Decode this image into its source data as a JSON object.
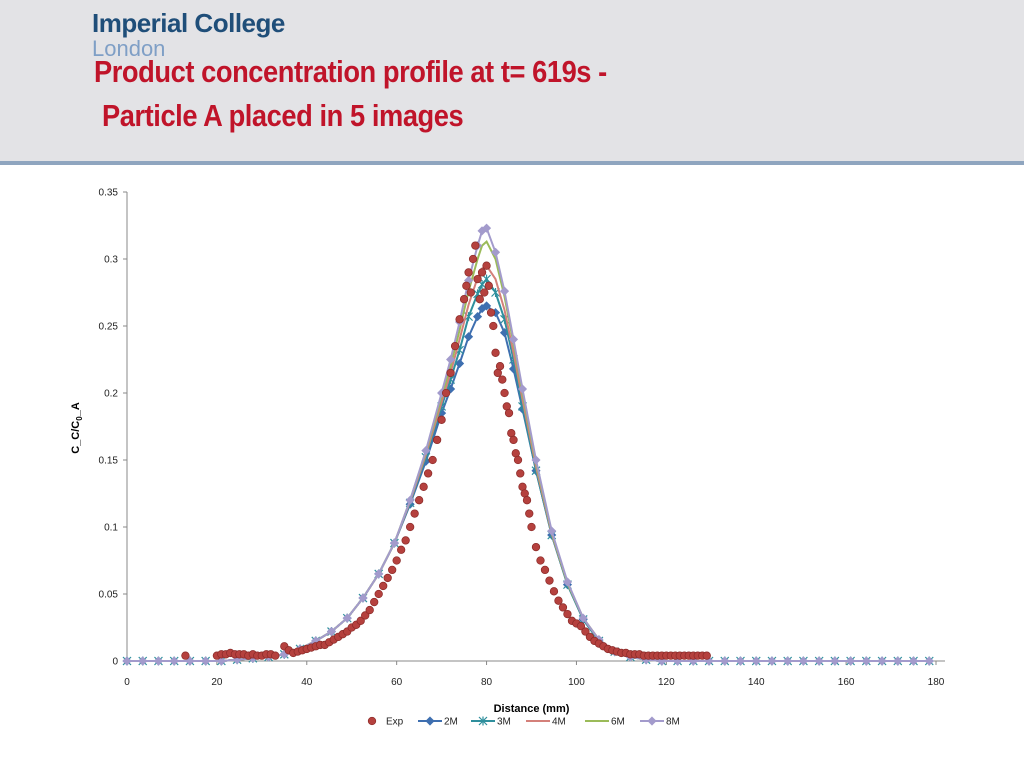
{
  "header": {
    "logo_line1": "Imperial College",
    "logo_line2": "London",
    "title_line1": "Product concentration profile at t= 619s -",
    "title_line2": "Particle A placed in 5 images"
  },
  "colors": {
    "header_bg": "#e3e3e6",
    "header_border": "#8fa5bf",
    "logo": "#1f4e79",
    "logo_light": "#7f9fc6",
    "title": "#c0142a"
  },
  "chart_data": {
    "type": "scatter",
    "xlabel": "Distance (mm)",
    "ylabel": "C_C/C0_A",
    "xlim": [
      0,
      180
    ],
    "ylim": [
      0,
      0.35
    ],
    "xticks": [
      0,
      20,
      40,
      60,
      80,
      100,
      120,
      140,
      160,
      180
    ],
    "yticks": [
      0,
      0.05,
      0.1,
      0.15,
      0.2,
      0.25,
      0.3,
      0.35
    ],
    "ytick_labels": [
      "0",
      "0.05",
      "0.1",
      "0.15",
      "0.2",
      "0.25",
      "0.3",
      "0.35"
    ],
    "grid": false,
    "legend_position": "bottom",
    "experimental": {
      "name": "Exp",
      "color": "#b5413e",
      "x": [
        13,
        20,
        21,
        22,
        23,
        24,
        25,
        26,
        27,
        28,
        29,
        30,
        31,
        32,
        33,
        35,
        36,
        37,
        38,
        39,
        40,
        41,
        42,
        43,
        44,
        45,
        46,
        47,
        48,
        49,
        50,
        51,
        52,
        53,
        54,
        55,
        56,
        57,
        58,
        59,
        60,
        61,
        62,
        63,
        64,
        65,
        66,
        67,
        68,
        69,
        70,
        71,
        72,
        73,
        74,
        75,
        75.5,
        76,
        76.5,
        77,
        77.5,
        78,
        78.5,
        79,
        79.5,
        80,
        80.5,
        81,
        81.5,
        82,
        82.5,
        83,
        83.5,
        84,
        84.5,
        85,
        85.5,
        86,
        86.5,
        87,
        87.5,
        88,
        88.5,
        89,
        89.5,
        90,
        91,
        92,
        93,
        94,
        95,
        96,
        97,
        98,
        99,
        100,
        101,
        102,
        103,
        104,
        105,
        106,
        107,
        108,
        109,
        110,
        111,
        112,
        113,
        114,
        115,
        116,
        117,
        118,
        119,
        120,
        121,
        122,
        123,
        124,
        125,
        126,
        127,
        128,
        129
      ],
      "y": [
        0.004,
        0.004,
        0.005,
        0.005,
        0.006,
        0.005,
        0.005,
        0.005,
        0.004,
        0.005,
        0.004,
        0.004,
        0.005,
        0.005,
        0.004,
        0.011,
        0.008,
        0.006,
        0.007,
        0.008,
        0.009,
        0.01,
        0.011,
        0.012,
        0.012,
        0.014,
        0.016,
        0.018,
        0.02,
        0.022,
        0.025,
        0.027,
        0.03,
        0.034,
        0.038,
        0.044,
        0.05,
        0.056,
        0.062,
        0.068,
        0.075,
        0.083,
        0.09,
        0.1,
        0.11,
        0.12,
        0.13,
        0.14,
        0.15,
        0.165,
        0.18,
        0.2,
        0.215,
        0.235,
        0.255,
        0.27,
        0.28,
        0.29,
        0.275,
        0.3,
        0.31,
        0.285,
        0.27,
        0.29,
        0.275,
        0.295,
        0.28,
        0.26,
        0.25,
        0.23,
        0.215,
        0.22,
        0.21,
        0.2,
        0.19,
        0.185,
        0.17,
        0.165,
        0.155,
        0.15,
        0.14,
        0.13,
        0.125,
        0.12,
        0.11,
        0.1,
        0.085,
        0.075,
        0.068,
        0.06,
        0.052,
        0.045,
        0.04,
        0.035,
        0.03,
        0.028,
        0.026,
        0.022,
        0.018,
        0.015,
        0.013,
        0.011,
        0.009,
        0.008,
        0.007,
        0.006,
        0.006,
        0.005,
        0.005,
        0.005,
        0.004,
        0.004,
        0.004,
        0.004,
        0.004,
        0.004,
        0.004,
        0.004,
        0.004,
        0.004,
        0.004,
        0.004,
        0.004,
        0.004,
        0.004
      ]
    },
    "x": [
      0,
      3.5,
      7,
      10.5,
      14,
      17.5,
      21,
      24.5,
      28,
      31.5,
      35,
      38.5,
      42,
      45.5,
      49,
      52.5,
      56,
      59.5,
      63,
      66.5,
      70,
      72,
      74,
      76,
      78,
      79,
      80,
      82,
      84,
      86,
      88,
      91,
      94.5,
      98,
      101.5,
      105,
      108.5,
      112,
      115.5,
      119,
      122.5,
      126,
      129.5,
      133,
      136.5,
      140,
      143.5,
      147,
      150.5,
      154,
      157.5,
      161,
      164.5,
      168,
      171.5,
      175,
      178.5
    ],
    "series": [
      {
        "name": "2M",
        "color": "#3e6fb0",
        "marker": "diamond",
        "values": [
          0,
          0,
          0,
          0,
          0,
          0,
          0,
          0.001,
          0.002,
          0.003,
          0.005,
          0.009,
          0.015,
          0.022,
          0.032,
          0.047,
          0.065,
          0.088,
          0.117,
          0.149,
          0.185,
          0.203,
          0.222,
          0.242,
          0.257,
          0.263,
          0.265,
          0.26,
          0.245,
          0.218,
          0.188,
          0.142,
          0.094,
          0.057,
          0.031,
          0.015,
          0.007,
          0.003,
          0.001,
          0,
          0,
          0,
          0,
          0,
          0,
          0,
          0,
          0,
          0,
          0,
          0,
          0,
          0,
          0,
          0,
          0,
          0
        ]
      },
      {
        "name": "3M",
        "color": "#2f8f9d",
        "marker": "star",
        "values": [
          0,
          0,
          0,
          0,
          0,
          0,
          0,
          0.001,
          0.002,
          0.003,
          0.005,
          0.009,
          0.015,
          0.022,
          0.032,
          0.047,
          0.065,
          0.088,
          0.118,
          0.152,
          0.19,
          0.21,
          0.232,
          0.257,
          0.274,
          0.281,
          0.285,
          0.275,
          0.255,
          0.225,
          0.19,
          0.142,
          0.094,
          0.057,
          0.031,
          0.015,
          0.007,
          0.003,
          0.001,
          0,
          0,
          0,
          0,
          0,
          0,
          0,
          0,
          0,
          0,
          0,
          0,
          0,
          0,
          0,
          0,
          0,
          0
        ]
      },
      {
        "name": "4M",
        "color": "#d4807a",
        "marker": "none",
        "values": [
          0,
          0,
          0,
          0,
          0,
          0,
          0,
          0.001,
          0.002,
          0.003,
          0.005,
          0.009,
          0.015,
          0.022,
          0.032,
          0.047,
          0.065,
          0.088,
          0.119,
          0.154,
          0.193,
          0.215,
          0.24,
          0.266,
          0.286,
          0.293,
          0.295,
          0.285,
          0.262,
          0.23,
          0.195,
          0.145,
          0.095,
          0.058,
          0.032,
          0.016,
          0.007,
          0.003,
          0.001,
          0,
          0,
          0,
          0,
          0,
          0,
          0,
          0,
          0,
          0,
          0,
          0,
          0,
          0,
          0,
          0,
          0,
          0
        ]
      },
      {
        "name": "6M",
        "color": "#9bbb59",
        "marker": "none",
        "values": [
          0,
          0,
          0,
          0,
          0,
          0,
          0,
          0.001,
          0.002,
          0.003,
          0.005,
          0.009,
          0.015,
          0.022,
          0.032,
          0.047,
          0.065,
          0.088,
          0.12,
          0.156,
          0.197,
          0.22,
          0.247,
          0.276,
          0.3,
          0.31,
          0.313,
          0.3,
          0.272,
          0.237,
          0.2,
          0.148,
          0.096,
          0.058,
          0.032,
          0.016,
          0.007,
          0.003,
          0.001,
          0,
          0,
          0,
          0,
          0,
          0,
          0,
          0,
          0,
          0,
          0,
          0,
          0,
          0,
          0,
          0,
          0,
          0
        ]
      },
      {
        "name": "8M",
        "color": "#a39bcc",
        "marker": "diamond",
        "values": [
          0,
          0,
          0,
          0,
          0,
          0,
          0,
          0.001,
          0.002,
          0.003,
          0.005,
          0.009,
          0.015,
          0.022,
          0.032,
          0.047,
          0.065,
          0.088,
          0.12,
          0.157,
          0.2,
          0.225,
          0.253,
          0.284,
          0.31,
          0.321,
          0.323,
          0.305,
          0.276,
          0.24,
          0.203,
          0.15,
          0.097,
          0.059,
          0.032,
          0.016,
          0.007,
          0.003,
          0.001,
          0,
          0,
          0,
          0,
          0,
          0,
          0,
          0,
          0,
          0,
          0,
          0,
          0,
          0,
          0,
          0,
          0,
          0
        ]
      }
    ]
  }
}
